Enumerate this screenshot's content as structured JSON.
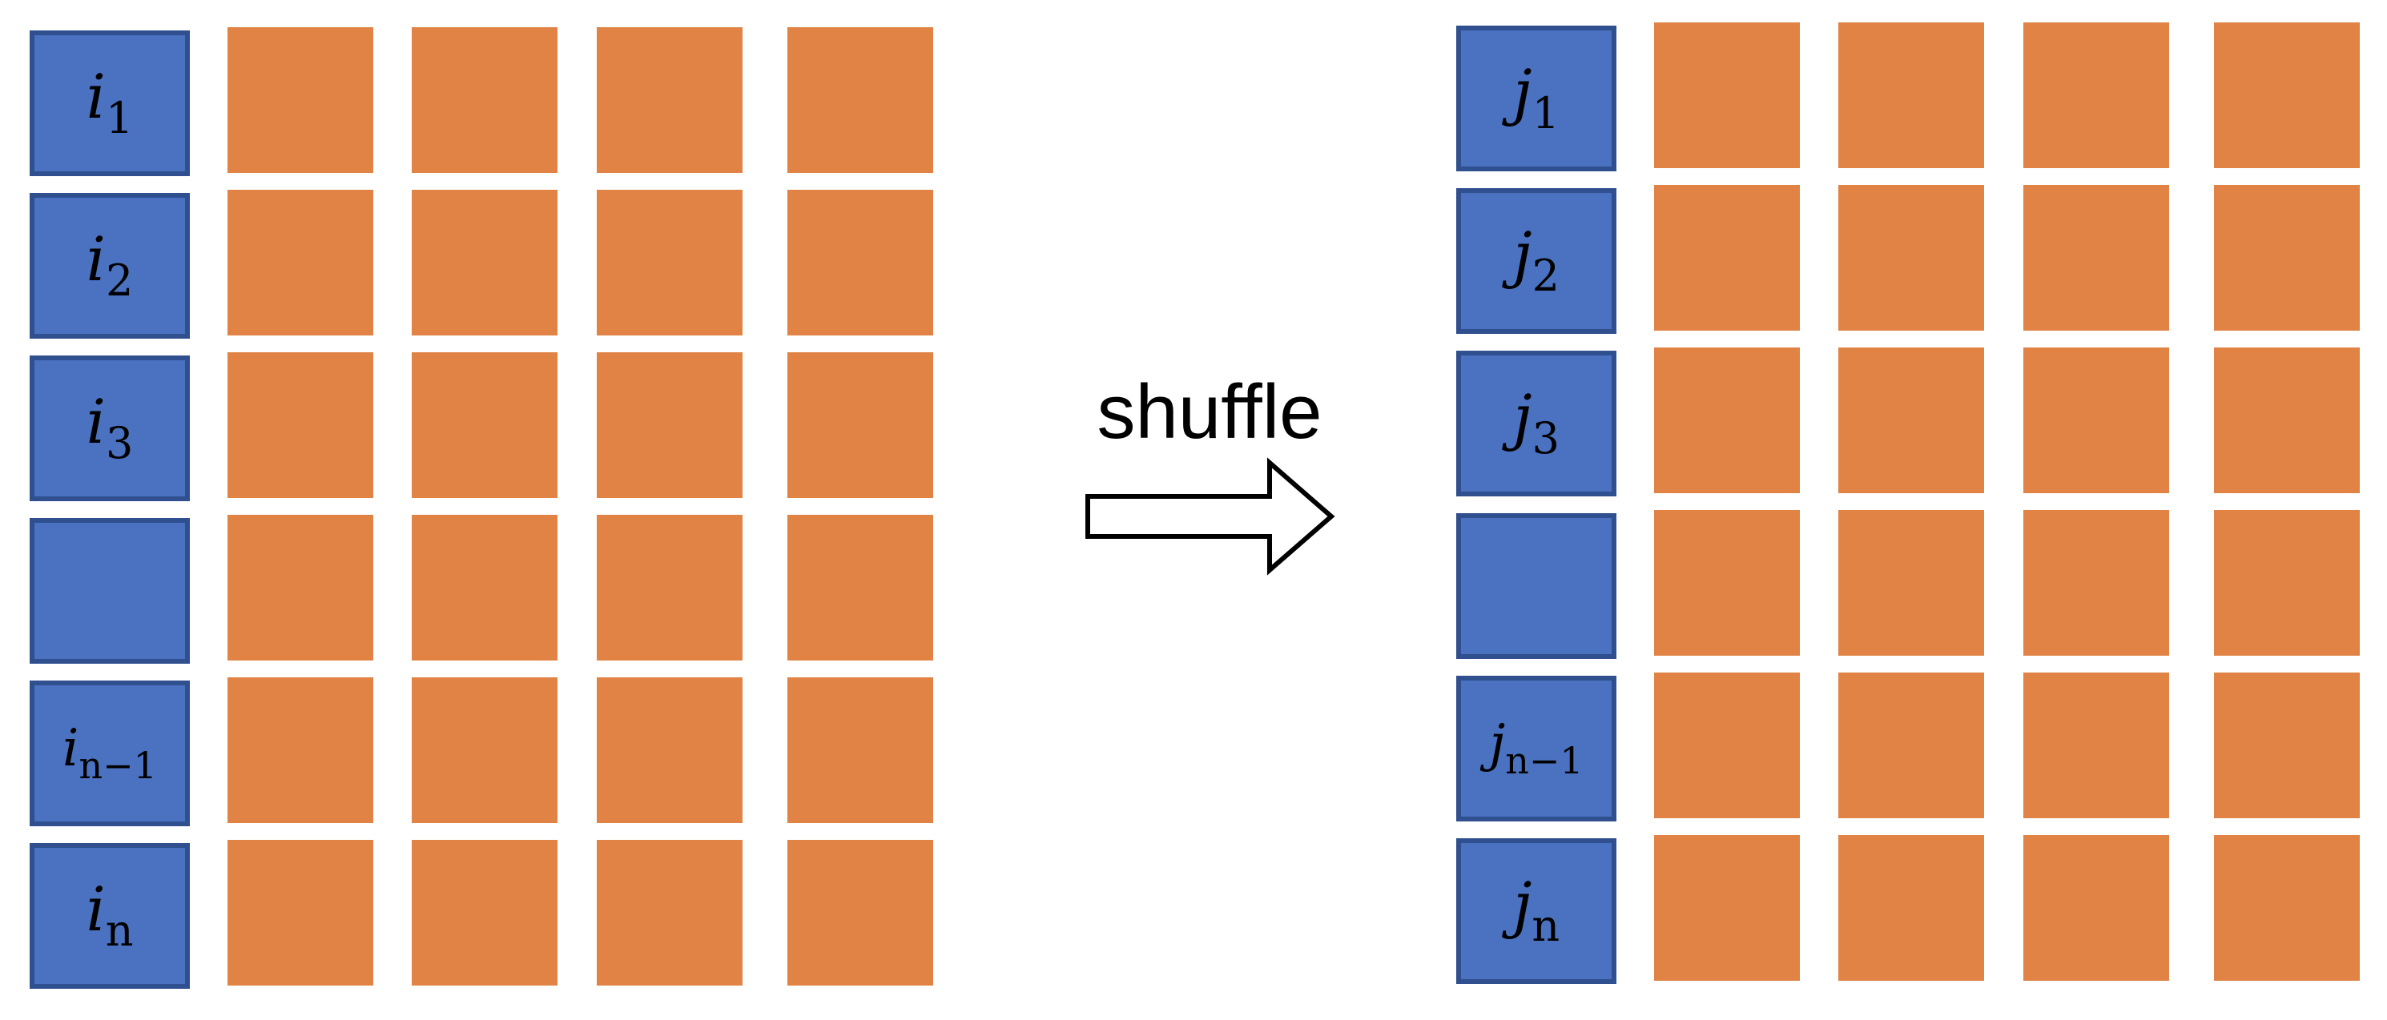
{
  "colors": {
    "index_fill": "#4a72c0",
    "index_border": "#2f4f8f",
    "token_fill": "#e08344",
    "background": "#ffffff"
  },
  "left_grid": {
    "labels": [
      {
        "base": "i",
        "sub": "1"
      },
      {
        "base": "i",
        "sub": "2"
      },
      {
        "base": "i",
        "sub": "3"
      },
      {
        "base": "",
        "sub": ""
      },
      {
        "base": "i",
        "sub": "n−1"
      },
      {
        "base": "i",
        "sub": "n"
      }
    ],
    "token_columns": 4
  },
  "arrow": {
    "label": "shuffle",
    "icon": "right-arrow-icon"
  },
  "right_grid": {
    "labels": [
      {
        "base": "j",
        "sub": "1"
      },
      {
        "base": "j",
        "sub": "2"
      },
      {
        "base": "j",
        "sub": "3"
      },
      {
        "base": "",
        "sub": ""
      },
      {
        "base": "j",
        "sub": "n−1"
      },
      {
        "base": "j",
        "sub": "n"
      }
    ],
    "token_columns": 4
  }
}
